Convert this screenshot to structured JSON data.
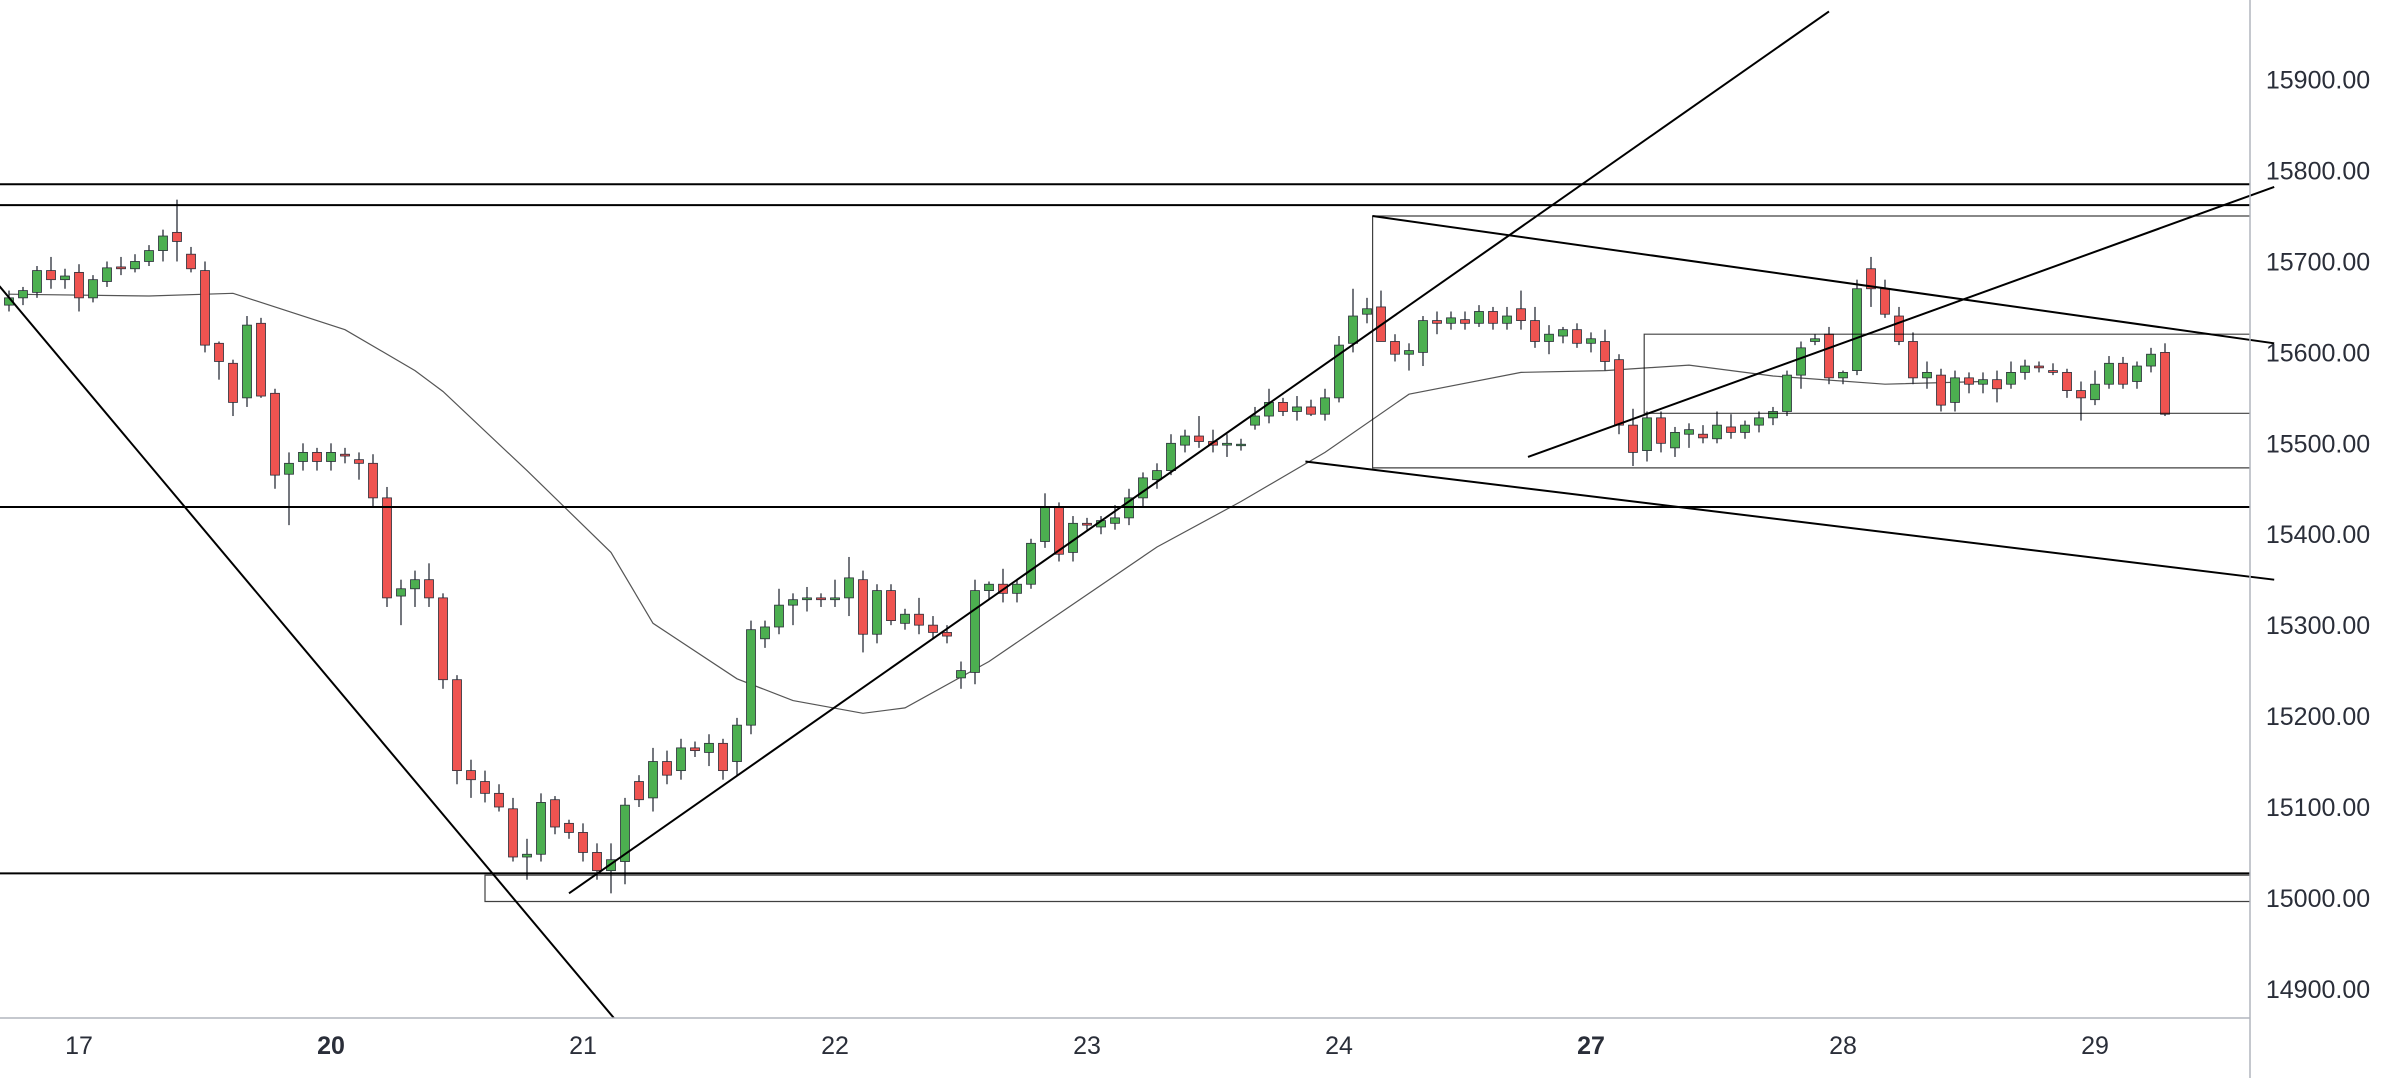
{
  "chart_data": {
    "type": "candlestick",
    "colors": {
      "up": "#4caf50",
      "down": "#ef5350",
      "wick": "#2a2e39",
      "drawing": "#000000",
      "ma": "#555555",
      "axis_line": "#b2b5be",
      "label": "#2a2e39"
    },
    "y_axis": {
      "side": "right",
      "range": [
        14880,
        15970
      ],
      "ticks": [
        "15900.00",
        "15800.00",
        "15700.00",
        "15600.00",
        "15500.00",
        "15400.00",
        "15300.00",
        "15200.00",
        "15100.00",
        "15000.00",
        "14900.00"
      ]
    },
    "x_axis": {
      "range_index": [
        0,
        167
      ],
      "ticks": [
        {
          "label": "17",
          "index": 5,
          "bold": false
        },
        {
          "label": "20",
          "index": 23,
          "bold": true
        },
        {
          "label": "21",
          "index": 41,
          "bold": false
        },
        {
          "label": "22",
          "index": 59,
          "bold": false
        },
        {
          "label": "23",
          "index": 77,
          "bold": false
        },
        {
          "label": "24",
          "index": 95,
          "bold": false
        },
        {
          "label": "27",
          "index": 113,
          "bold": true
        },
        {
          "label": "28",
          "index": 131,
          "bold": false
        },
        {
          "label": "29",
          "index": 149,
          "bold": false
        }
      ]
    },
    "candles": [
      [
        15652,
        15668,
        15645,
        15660
      ],
      [
        15660,
        15672,
        15652,
        15668
      ],
      [
        15666,
        15695,
        15660,
        15690
      ],
      [
        15690,
        15705,
        15670,
        15680
      ],
      [
        15680,
        15692,
        15670,
        15684
      ],
      [
        15688,
        15697,
        15645,
        15660
      ],
      [
        15660,
        15685,
        15655,
        15680
      ],
      [
        15678,
        15700,
        15672,
        15693
      ],
      [
        15694,
        15705,
        15685,
        15692
      ],
      [
        15692,
        15708,
        15688,
        15700
      ],
      [
        15700,
        15718,
        15695,
        15712
      ],
      [
        15712,
        15735,
        15700,
        15728
      ],
      [
        15732,
        15768,
        15700,
        15722
      ],
      [
        15708,
        15716,
        15688,
        15692
      ],
      [
        15690,
        15700,
        15600,
        15608
      ],
      [
        15610,
        15612,
        15570,
        15590
      ],
      [
        15588,
        15592,
        15530,
        15545
      ],
      [
        15550,
        15640,
        15540,
        15630
      ],
      [
        15632,
        15638,
        15550,
        15552
      ],
      [
        15555,
        15560,
        15450,
        15465
      ],
      [
        15466,
        15490,
        15410,
        15478
      ],
      [
        15480,
        15500,
        15470,
        15490
      ],
      [
        15490,
        15495,
        15470,
        15480
      ],
      [
        15480,
        15500,
        15470,
        15490
      ],
      [
        15488,
        15495,
        15478,
        15486
      ],
      [
        15482,
        15490,
        15460,
        15478
      ],
      [
        15478,
        15488,
        15430,
        15440
      ],
      [
        15440,
        15452,
        15320,
        15330
      ],
      [
        15332,
        15350,
        15300,
        15340
      ],
      [
        15340,
        15360,
        15320,
        15350
      ],
      [
        15350,
        15368,
        15320,
        15330
      ],
      [
        15330,
        15335,
        15230,
        15240
      ],
      [
        15240,
        15245,
        15125,
        15140
      ],
      [
        15140,
        15152,
        15110,
        15130
      ],
      [
        15128,
        15140,
        15105,
        15115
      ],
      [
        15115,
        15125,
        15095,
        15100
      ],
      [
        15098,
        15110,
        15040,
        15045
      ],
      [
        15045,
        15065,
        15020,
        15048
      ],
      [
        15048,
        15115,
        15040,
        15105
      ],
      [
        15108,
        15112,
        15070,
        15078
      ],
      [
        15082,
        15086,
        15065,
        15072
      ],
      [
        15072,
        15082,
        15040,
        15050
      ],
      [
        15050,
        15060,
        15020,
        15030
      ],
      [
        15030,
        15060,
        15005,
        15042
      ],
      [
        15040,
        15110,
        15015,
        15102
      ],
      [
        15128,
        15135,
        15100,
        15108
      ],
      [
        15110,
        15165,
        15095,
        15150
      ],
      [
        15150,
        15162,
        15125,
        15135
      ],
      [
        15140,
        15175,
        15130,
        15165
      ],
      [
        15165,
        15172,
        15155,
        15162
      ],
      [
        15160,
        15180,
        15145,
        15170
      ],
      [
        15170,
        15175,
        15130,
        15140
      ],
      [
        15150,
        15198,
        15135,
        15190
      ],
      [
        15190,
        15305,
        15180,
        15295
      ],
      [
        15285,
        15305,
        15275,
        15298
      ],
      [
        15298,
        15340,
        15290,
        15322
      ],
      [
        15322,
        15335,
        15300,
        15328
      ],
      [
        15328,
        15342,
        15315,
        15330
      ],
      [
        15330,
        15335,
        15320,
        15328
      ],
      [
        15328,
        15350,
        15320,
        15330
      ],
      [
        15330,
        15375,
        15310,
        15352
      ],
      [
        15350,
        15360,
        15270,
        15290
      ],
      [
        15290,
        15345,
        15280,
        15338
      ],
      [
        15338,
        15345,
        15300,
        15305
      ],
      [
        15302,
        15318,
        15295,
        15312
      ],
      [
        15312,
        15330,
        15290,
        15300
      ],
      [
        15300,
        15310,
        15285,
        15292
      ],
      [
        15292,
        15300,
        15280,
        15288
      ],
      [
        15242,
        15260,
        15230,
        15250
      ],
      [
        15248,
        15350,
        15235,
        15338
      ],
      [
        15338,
        15348,
        15328,
        15345
      ],
      [
        15345,
        15362,
        15325,
        15335
      ],
      [
        15335,
        15350,
        15325,
        15345
      ],
      [
        15345,
        15395,
        15340,
        15390
      ],
      [
        15392,
        15445,
        15385,
        15430
      ],
      [
        15430,
        15435,
        15370,
        15378
      ],
      [
        15380,
        15420,
        15370,
        15412
      ],
      [
        15412,
        15418,
        15405,
        15410
      ],
      [
        15408,
        15420,
        15400,
        15415
      ],
      [
        15412,
        15432,
        15405,
        15418
      ],
      [
        15418,
        15450,
        15410,
        15440
      ],
      [
        15440,
        15468,
        15430,
        15462
      ],
      [
        15460,
        15478,
        15450,
        15470
      ],
      [
        15470,
        15510,
        15465,
        15500
      ],
      [
        15498,
        15515,
        15490,
        15508
      ],
      [
        15508,
        15530,
        15495,
        15502
      ],
      [
        15502,
        15515,
        15490,
        15498
      ],
      [
        15498,
        15510,
        15485,
        15500
      ],
      [
        15498,
        15505,
        15492,
        15499
      ],
      [
        15520,
        15540,
        15515,
        15530
      ],
      [
        15530,
        15560,
        15522,
        15545
      ],
      [
        15545,
        15550,
        15530,
        15535
      ],
      [
        15535,
        15552,
        15525,
        15540
      ],
      [
        15540,
        15548,
        15530,
        15532
      ],
      [
        15532,
        15560,
        15525,
        15550
      ],
      [
        15550,
        15618,
        15545,
        15608
      ],
      [
        15610,
        15670,
        15600,
        15640
      ],
      [
        15642,
        15660,
        15632,
        15648
      ],
      [
        15650,
        15668,
        15612,
        15612
      ],
      [
        15612,
        15620,
        15590,
        15598
      ],
      [
        15598,
        15610,
        15580,
        15602
      ],
      [
        15600,
        15640,
        15585,
        15635
      ],
      [
        15635,
        15645,
        15620,
        15632
      ],
      [
        15632,
        15645,
        15625,
        15638
      ],
      [
        15636,
        15645,
        15625,
        15632
      ],
      [
        15632,
        15652,
        15628,
        15645
      ],
      [
        15645,
        15650,
        15625,
        15632
      ],
      [
        15632,
        15650,
        15625,
        15640
      ],
      [
        15648,
        15668,
        15625,
        15635
      ],
      [
        15635,
        15650,
        15605,
        15612
      ],
      [
        15612,
        15630,
        15598,
        15620
      ],
      [
        15618,
        15628,
        15610,
        15625
      ],
      [
        15625,
        15632,
        15605,
        15610
      ],
      [
        15610,
        15622,
        15600,
        15615
      ],
      [
        15612,
        15625,
        15580,
        15590
      ],
      [
        15592,
        15598,
        15510,
        15520
      ],
      [
        15520,
        15538,
        15475,
        15490
      ],
      [
        15492,
        15535,
        15480,
        15528
      ],
      [
        15528,
        15535,
        15490,
        15500
      ],
      [
        15495,
        15518,
        15485,
        15512
      ],
      [
        15510,
        15522,
        15495,
        15515
      ],
      [
        15510,
        15520,
        15500,
        15506
      ],
      [
        15505,
        15535,
        15500,
        15520
      ],
      [
        15518,
        15532,
        15505,
        15512
      ],
      [
        15512,
        15525,
        15505,
        15520
      ],
      [
        15520,
        15535,
        15512,
        15528
      ],
      [
        15528,
        15540,
        15520,
        15535
      ],
      [
        15535,
        15580,
        15530,
        15575
      ],
      [
        15575,
        15612,
        15560,
        15605
      ],
      [
        15612,
        15620,
        15608,
        15615
      ],
      [
        15620,
        15628,
        15565,
        15572
      ],
      [
        15572,
        15580,
        15565,
        15578
      ],
      [
        15580,
        15680,
        15575,
        15670
      ],
      [
        15692,
        15705,
        15650,
        15670
      ],
      [
        15670,
        15680,
        15638,
        15642
      ],
      [
        15640,
        15650,
        15608,
        15612
      ],
      [
        15612,
        15622,
        15565,
        15572
      ],
      [
        15572,
        15590,
        15560,
        15578
      ],
      [
        15575,
        15582,
        15535,
        15542
      ],
      [
        15545,
        15580,
        15535,
        15572
      ],
      [
        15572,
        15578,
        15555,
        15565
      ],
      [
        15565,
        15578,
        15555,
        15570
      ],
      [
        15570,
        15580,
        15545,
        15560
      ],
      [
        15565,
        15590,
        15560,
        15578
      ],
      [
        15578,
        15592,
        15570,
        15585
      ],
      [
        15585,
        15590,
        15578,
        15583
      ],
      [
        15580,
        15588,
        15575,
        15578
      ],
      [
        15578,
        15582,
        15550,
        15558
      ],
      [
        15558,
        15568,
        15525,
        15550
      ],
      [
        15548,
        15580,
        15542,
        15565
      ],
      [
        15565,
        15596,
        15560,
        15588
      ],
      [
        15588,
        15595,
        15560,
        15565
      ],
      [
        15568,
        15590,
        15560,
        15585
      ],
      [
        15585,
        15605,
        15578,
        15598
      ],
      [
        15600,
        15610,
        15530,
        15532
      ]
    ],
    "moving_average": [
      [
        0,
        15664
      ],
      [
        10,
        15662
      ],
      [
        16,
        15665
      ],
      [
        24,
        15625
      ],
      [
        29,
        15580
      ],
      [
        31,
        15557
      ],
      [
        37,
        15470
      ],
      [
        43,
        15380
      ],
      [
        46,
        15302
      ],
      [
        52,
        15241
      ],
      [
        56,
        15217
      ],
      [
        61,
        15203
      ],
      [
        64,
        15209
      ],
      [
        70,
        15260
      ],
      [
        76,
        15323
      ],
      [
        82,
        15386
      ],
      [
        88,
        15436
      ],
      [
        94,
        15490
      ],
      [
        100,
        15554
      ],
      [
        108,
        15578
      ],
      [
        114,
        15580
      ],
      [
        120,
        15586
      ],
      [
        126,
        15574
      ],
      [
        134,
        15565
      ],
      [
        141,
        15568
      ]
    ],
    "horizontal_lines": [
      15785,
      15762,
      15430,
      15027
    ],
    "trend_lines": [
      [
        [
          -6.8,
          15785
        ],
        [
          43.2,
          14868
        ]
      ],
      [
        [
          40.0,
          15005
        ],
        [
          130.0,
          15975
        ]
      ],
      [
        [
          92.6,
          15480
        ],
        [
          161.8,
          15350
        ]
      ],
      [
        [
          108.5,
          15485
        ],
        [
          161.8,
          15782
        ]
      ],
      [
        [
          97.4,
          15750
        ],
        [
          161.8,
          15610
        ]
      ]
    ],
    "rectangles": [
      {
        "x1": 97.4,
        "x2": 161.8,
        "y_top": 15750,
        "y_bottom": 15473
      },
      {
        "x1": 34.0,
        "x2": 161.8,
        "y_top": 15025,
        "y_bottom": 14996
      },
      {
        "x1": 116.8,
        "x2": 161.8,
        "y_top": 15620,
        "y_bottom": 15533
      }
    ]
  }
}
